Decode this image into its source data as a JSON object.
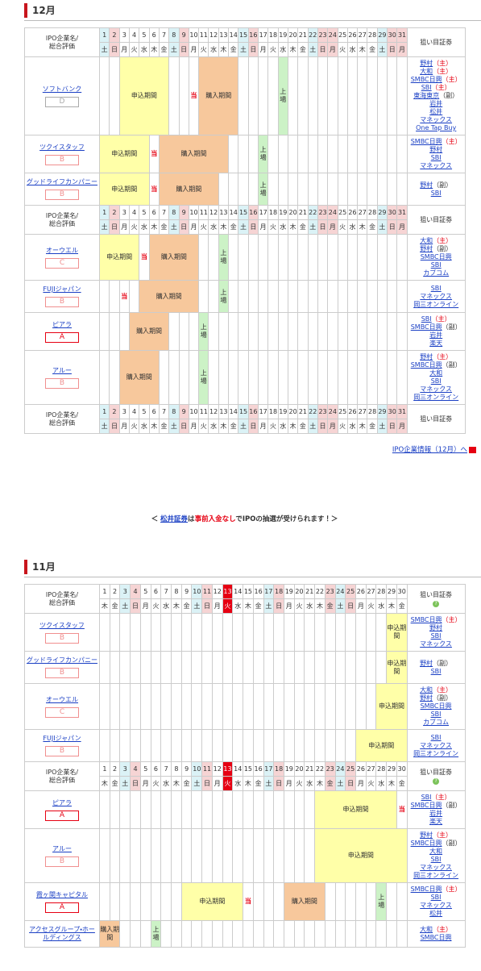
{
  "colors": {
    "saturday": "#dbf2f6",
    "holiday": "#f6d4d4",
    "today": "#e60012",
    "link": "#1a3fc4",
    "apply": "#ffffa8",
    "buy": "#f7c89c",
    "listing": "#ccf2c6",
    "lottery": "#e60012"
  },
  "sections": [
    {
      "title": "12月",
      "header": {
        "name_lines": [
          "IPO企業名/",
          "総合評価"
        ],
        "broker_label": "狙い目証券"
      },
      "days": [
        1,
        2,
        3,
        4,
        5,
        6,
        7,
        8,
        9,
        10,
        11,
        12,
        13,
        14,
        15,
        16,
        17,
        18,
        19,
        20,
        21,
        22,
        23,
        24,
        25,
        26,
        27,
        28,
        29,
        30,
        31
      ],
      "weekdays": [
        "土",
        "日",
        "月",
        "火",
        "水",
        "木",
        "金",
        "土",
        "日",
        "月",
        "火",
        "水",
        "木",
        "金",
        "土",
        "日",
        "月",
        "火",
        "水",
        "木",
        "金",
        "土",
        "日",
        "月",
        "火",
        "水",
        "木",
        "金",
        "土",
        "日",
        "月"
      ],
      "saturdays": [
        1,
        8,
        15,
        22,
        29
      ],
      "holidays": [
        2,
        9,
        16,
        23,
        24,
        30,
        31
      ],
      "blocks": [
        {
          "companies": [
            {
              "name": "ソフトバンク",
              "grade": "D",
              "grade_color": "#aaaaaa",
              "events": [
                {
                  "label": "申込期間",
                  "from": 3,
                  "to": 7,
                  "color": "#ffffa8"
                },
                {
                  "label": "当",
                  "from": 10,
                  "to": 10,
                  "text_color": "#e60012"
                },
                {
                  "label": "購入期間",
                  "from": 11,
                  "to": 14,
                  "color": "#f7c89c"
                },
                {
                  "label": "上場",
                  "from": 19,
                  "to": 19,
                  "color": "#ccf2c6"
                }
              ],
              "brokers": [
                {
                  "name": "野村",
                  "role": "（主）",
                  "role_color": "#e60012"
                },
                {
                  "name": "大和",
                  "role": "（主）",
                  "role_color": "#e60012"
                },
                {
                  "name": "SMBC日興",
                  "role": "（主）",
                  "role_color": "#e60012"
                },
                {
                  "name": "SBI",
                  "role": "（主）",
                  "role_color": "#e60012"
                },
                {
                  "name": "東海東京",
                  "role": "（副）",
                  "role_color": "#333333"
                },
                {
                  "name": "岩井"
                },
                {
                  "name": "松井"
                },
                {
                  "name": "マネックス"
                },
                {
                  "name": "One Tap Buy"
                }
              ]
            },
            {
              "name": "ツクイスタッフ",
              "grade": "B",
              "grade_color": "#f08f8f",
              "events": [
                {
                  "label": "申込期間",
                  "from": 1,
                  "to": 5,
                  "color": "#ffffa8"
                },
                {
                  "label": "当",
                  "from": 6,
                  "to": 6,
                  "text_color": "#e60012"
                },
                {
                  "label": "購入期間",
                  "from": 7,
                  "to": 13,
                  "color": "#f7c89c"
                },
                {
                  "label": "上場",
                  "from": 17,
                  "to": 17,
                  "color": "#ccf2c6"
                }
              ],
              "brokers": [
                {
                  "name": "SMBC日興",
                  "role": "（主）",
                  "role_color": "#e60012"
                },
                {
                  "name": "野村"
                },
                {
                  "name": "SBI"
                },
                {
                  "name": "マネックス"
                }
              ]
            },
            {
              "name": "グッドライフカンパニー",
              "grade": "B",
              "grade_color": "#f08f8f",
              "events": [
                {
                  "label": "申込期間",
                  "from": 1,
                  "to": 5,
                  "color": "#ffffa8"
                },
                {
                  "label": "当",
                  "from": 6,
                  "to": 6,
                  "text_color": "#e60012"
                },
                {
                  "label": "購入期間",
                  "from": 7,
                  "to": 12,
                  "color": "#f7c89c"
                },
                {
                  "label": "上場",
                  "from": 17,
                  "to": 17,
                  "color": "#ccf2c6"
                }
              ],
              "brokers": [
                {
                  "name": "野村",
                  "role": "（副）",
                  "role_color": "#333333"
                },
                {
                  "name": "SBI"
                }
              ]
            }
          ]
        },
        {
          "companies": [
            {
              "name": "オーウエル",
              "grade": "C",
              "grade_color": "#f08f8f",
              "events": [
                {
                  "label": "申込期間",
                  "from": 1,
                  "to": 4,
                  "color": "#ffffa8"
                },
                {
                  "label": "当",
                  "from": 5,
                  "to": 5,
                  "text_color": "#e60012"
                },
                {
                  "label": "購入期間",
                  "from": 6,
                  "to": 10,
                  "color": "#f7c89c"
                },
                {
                  "label": "上場",
                  "from": 13,
                  "to": 13,
                  "color": "#ccf2c6"
                }
              ],
              "brokers": [
                {
                  "name": "大和",
                  "role": "（主）",
                  "role_color": "#e60012"
                },
                {
                  "name": "野村",
                  "role": "（副）",
                  "role_color": "#333333"
                },
                {
                  "name": "SMBC日興"
                },
                {
                  "name": "SBI"
                },
                {
                  "name": "カブコム"
                }
              ]
            },
            {
              "name": "FUJIジャパン",
              "grade": "B",
              "grade_color": "#f08f8f",
              "events": [
                {
                  "label": "当",
                  "from": 3,
                  "to": 3,
                  "text_color": "#e60012"
                },
                {
                  "label": "購入期間",
                  "from": 5,
                  "to": 10,
                  "color": "#f7c89c"
                },
                {
                  "label": "上場",
                  "from": 13,
                  "to": 13,
                  "color": "#ccf2c6"
                }
              ],
              "brokers": [
                {
                  "name": "SBI"
                },
                {
                  "name": "マネックス"
                },
                {
                  "name": "岡三オンライン"
                }
              ]
            },
            {
              "name": "ピアラ",
              "grade": "A",
              "grade_color": "#e60012",
              "events": [
                {
                  "label": "購入期間",
                  "from": 4,
                  "to": 7,
                  "color": "#f7c89c"
                },
                {
                  "label": "上場",
                  "from": 11,
                  "to": 11,
                  "color": "#ccf2c6"
                }
              ],
              "brokers": [
                {
                  "name": "SBI",
                  "role": "（主）",
                  "role_color": "#e60012"
                },
                {
                  "name": "SMBC日興",
                  "role": "（副）",
                  "role_color": "#333333"
                },
                {
                  "name": "岩井"
                },
                {
                  "name": "楽天"
                }
              ]
            },
            {
              "name": "アルー",
              "grade": "B",
              "grade_color": "#f08f8f",
              "events": [
                {
                  "label": "購入期間",
                  "from": 3,
                  "to": 6,
                  "color": "#f7c89c"
                },
                {
                  "label": "上場",
                  "from": 11,
                  "to": 11,
                  "color": "#ccf2c6"
                }
              ],
              "brokers": [
                {
                  "name": "野村",
                  "role": "（主）",
                  "role_color": "#e60012"
                },
                {
                  "name": "SMBC日興",
                  "role": "（副）",
                  "role_color": "#333333"
                },
                {
                  "name": "大和"
                },
                {
                  "name": "SBI"
                },
                {
                  "name": "マネックス"
                },
                {
                  "name": "岡三オンライン"
                }
              ]
            }
          ]
        },
        {
          "companies": []
        }
      ],
      "link": "IPO企業情報（12月）へ"
    },
    {
      "title": "11月",
      "header": {
        "name_lines": [
          "IPO企業名/",
          "総合評価"
        ],
        "broker_label": "狙い目証券",
        "help_icon": "?"
      },
      "days": [
        1,
        2,
        3,
        4,
        5,
        6,
        7,
        8,
        9,
        10,
        11,
        12,
        13,
        14,
        15,
        16,
        17,
        18,
        19,
        20,
        21,
        22,
        23,
        24,
        25,
        26,
        27,
        28,
        29,
        30
      ],
      "weekdays": [
        "木",
        "金",
        "土",
        "日",
        "月",
        "火",
        "水",
        "木",
        "金",
        "土",
        "日",
        "月",
        "火",
        "水",
        "木",
        "金",
        "土",
        "日",
        "月",
        "火",
        "水",
        "木",
        "金",
        "土",
        "日",
        "月",
        "火",
        "水",
        "木",
        "金"
      ],
      "saturdays": [
        3,
        10,
        17,
        24
      ],
      "holidays": [
        4,
        11,
        18,
        23,
        25
      ],
      "today": 13,
      "blocks": [
        {
          "companies": [
            {
              "name": "ツクイスタッフ",
              "grade": "B",
              "grade_color": "#f08f8f",
              "events": [
                {
                  "label": "申込期間",
                  "from": 29,
                  "to": 30,
                  "color": "#ffffa8"
                }
              ],
              "brokers": [
                {
                  "name": "SMBC日興",
                  "role": "（主）",
                  "role_color": "#e60012"
                },
                {
                  "name": "野村"
                },
                {
                  "name": "SBI"
                },
                {
                  "name": "マネックス"
                }
              ]
            },
            {
              "name": "グッドライフカンパニー",
              "grade": "B",
              "grade_color": "#f08f8f",
              "events": [
                {
                  "label": "申込期間",
                  "from": 29,
                  "to": 30,
                  "color": "#ffffa8"
                }
              ],
              "brokers": [
                {
                  "name": "野村",
                  "role": "（副）",
                  "role_color": "#333333"
                },
                {
                  "name": "SBI"
                }
              ]
            },
            {
              "name": "オーウエル",
              "grade": "C",
              "grade_color": "#f08f8f",
              "events": [
                {
                  "label": "申込期間",
                  "from": 28,
                  "to": 30,
                  "color": "#ffffa8"
                }
              ],
              "brokers": [
                {
                  "name": "大和",
                  "role": "（主）",
                  "role_color": "#e60012"
                },
                {
                  "name": "野村",
                  "role": "（副）",
                  "role_color": "#333333"
                },
                {
                  "name": "SMBC日興"
                },
                {
                  "name": "SBI"
                },
                {
                  "name": "カブコム"
                }
              ]
            },
            {
              "name": "FUJIジャパン",
              "grade": "B",
              "grade_color": "#f08f8f",
              "events": [
                {
                  "label": "申込期間",
                  "from": 26,
                  "to": 30,
                  "color": "#ffffa8"
                }
              ],
              "brokers": [
                {
                  "name": "SBI"
                },
                {
                  "name": "マネックス"
                },
                {
                  "name": "岡三オンライン"
                }
              ]
            }
          ]
        },
        {
          "companies": [
            {
              "name": "ピアラ",
              "grade": "A",
              "grade_color": "#e60012",
              "events": [
                {
                  "label": "申込期間",
                  "from": 22,
                  "to": 29,
                  "color": "#ffffa8"
                },
                {
                  "label": "当",
                  "from": 30,
                  "to": 30,
                  "text_color": "#e60012"
                }
              ],
              "brokers": [
                {
                  "name": "SBI",
                  "role": "（主）",
                  "role_color": "#e60012"
                },
                {
                  "name": "SMBC日興",
                  "role": "（副）",
                  "role_color": "#333333"
                },
                {
                  "name": "岩井"
                },
                {
                  "name": "楽天"
                }
              ]
            },
            {
              "name": "アルー",
              "grade": "B",
              "grade_color": "#f08f8f",
              "events": [
                {
                  "label": "申込期間",
                  "from": 22,
                  "to": 30,
                  "color": "#ffffa8"
                }
              ],
              "brokers": [
                {
                  "name": "野村",
                  "role": "（主）",
                  "role_color": "#e60012"
                },
                {
                  "name": "SMBC日興",
                  "role": "（副）",
                  "role_color": "#333333"
                },
                {
                  "name": "大和"
                },
                {
                  "name": "SBI"
                },
                {
                  "name": "マネックス"
                },
                {
                  "name": "岡三オンライン"
                }
              ]
            },
            {
              "name": "霞ヶ関キャピタル",
              "grade": "A",
              "grade_color": "#e60012",
              "events": [
                {
                  "label": "申込期間",
                  "from": 9,
                  "to": 14,
                  "color": "#ffffa8"
                },
                {
                  "label": "当",
                  "from": 15,
                  "to": 15,
                  "text_color": "#e60012"
                },
                {
                  "label": "購入期間",
                  "from": 19,
                  "to": 22,
                  "color": "#f7c89c"
                },
                {
                  "label": "上場",
                  "from": 28,
                  "to": 28,
                  "color": "#ccf2c6"
                }
              ],
              "brokers": [
                {
                  "name": "SMBC日興",
                  "role": "（主）",
                  "role_color": "#e60012"
                },
                {
                  "name": "SBI"
                },
                {
                  "name": "マネックス"
                },
                {
                  "name": "松井"
                }
              ]
            },
            {
              "name": "アクセスグループ・ホールディングス",
              "events": [
                {
                  "label": "購入期間",
                  "from": 1,
                  "to": 2,
                  "color": "#f7c89c"
                },
                {
                  "label": "上場",
                  "from": 6,
                  "to": 6,
                  "color": "#ccf2c6"
                }
              ],
              "brokers": [
                {
                  "name": "大和",
                  "role": "（主）",
                  "role_color": "#e60012"
                },
                {
                  "name": "SMBC日興"
                }
              ]
            }
          ]
        }
      ]
    }
  ],
  "notice": {
    "parts": [
      {
        "text": "＜ ",
        "color": "#333333"
      },
      {
        "text": "松井証券",
        "color": "#1a3fc4",
        "link": true
      },
      {
        "text": "は",
        "color": "#333333"
      },
      {
        "text": "事前入金なし",
        "color": "#e60012"
      },
      {
        "text": "でIPOの抽選が受けられます！＞",
        "color": "#333333"
      }
    ]
  }
}
